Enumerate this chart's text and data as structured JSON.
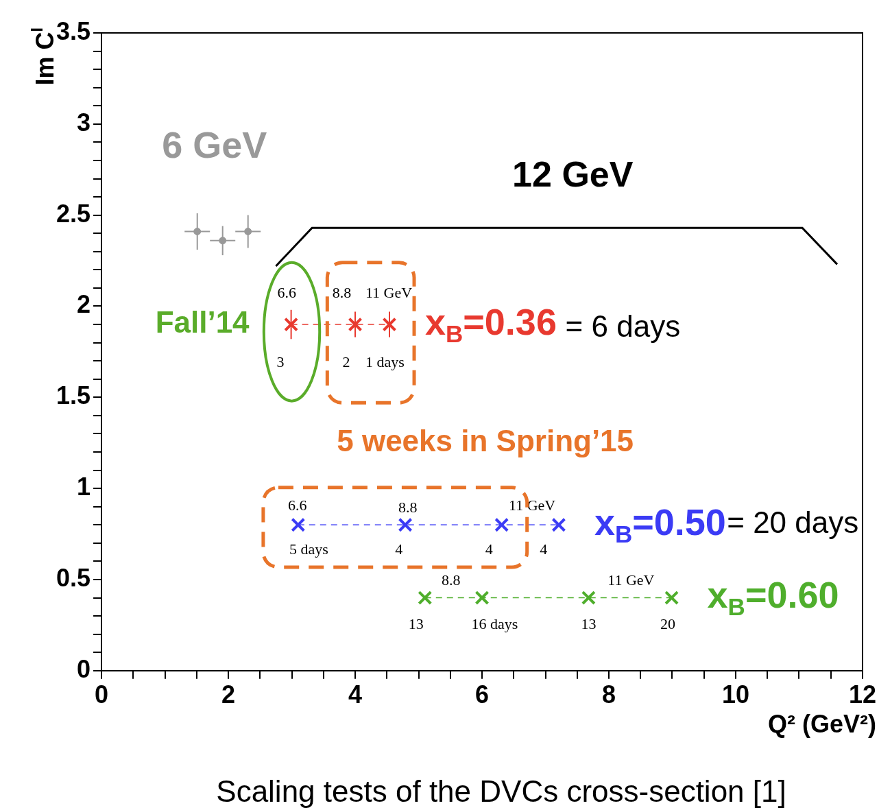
{
  "chart_data": {
    "type": "scatter",
    "xlabel": "Q² (GeV²)",
    "ylabel": "Im C$^{I}$",
    "xlim": [
      0,
      12
    ],
    "ylim": [
      0,
      3.5
    ],
    "xticks": [
      0,
      {
        "value": 0.5,
        "label": null
      },
      {
        "value": 1,
        "label": null
      },
      {
        "value": 1.5,
        "label": null
      },
      2,
      {
        "value": 2.5,
        "label": null
      },
      {
        "value": 3,
        "label": null
      },
      {
        "value": 3.5,
        "label": null
      },
      4,
      {
        "value": 4.5,
        "label": null
      },
      {
        "value": 5,
        "label": null
      },
      {
        "value": 5.5,
        "label": null
      },
      6,
      {
        "value": 6.5,
        "label": null
      },
      {
        "value": 7,
        "label": null
      },
      {
        "value": 7.5,
        "label": null
      },
      8,
      {
        "value": 8.5,
        "label": null
      },
      {
        "value": 9,
        "label": null
      },
      {
        "value": 9.5,
        "label": null
      },
      10,
      {
        "value": 10.5,
        "label": null
      },
      {
        "value": 11,
        "label": null
      },
      {
        "value": 11.5,
        "label": null
      },
      12
    ],
    "yticks": [
      0,
      {
        "value": 0.1,
        "label": null
      },
      {
        "value": 0.2,
        "label": null
      },
      {
        "value": 0.3,
        "label": null
      },
      {
        "value": 0.4,
        "label": null
      },
      0.5,
      {
        "value": 0.6,
        "label": null
      },
      {
        "value": 0.7,
        "label": null
      },
      {
        "value": 0.8,
        "label": null
      },
      {
        "value": 0.9,
        "label": null
      },
      1,
      {
        "value": 1.1,
        "label": null
      },
      {
        "value": 1.2,
        "label": null
      },
      {
        "value": 1.3,
        "label": null
      },
      {
        "value": 1.4,
        "label": null
      },
      1.5,
      {
        "value": 1.6,
        "label": null
      },
      {
        "value": 1.7,
        "label": null
      },
      {
        "value": 1.8,
        "label": null
      },
      {
        "value": 1.9,
        "label": null
      },
      2,
      {
        "value": 2.1,
        "label": null
      },
      {
        "value": 2.2,
        "label": null
      },
      {
        "value": 2.3,
        "label": null
      },
      {
        "value": 2.4,
        "label": null
      },
      2.5,
      {
        "value": 2.6,
        "label": null
      },
      {
        "value": 2.7,
        "label": null
      },
      {
        "value": 2.8,
        "label": null
      },
      {
        "value": 2.9,
        "label": null
      },
      3,
      {
        "value": 3.1,
        "label": null
      },
      {
        "value": 3.2,
        "label": null
      },
      {
        "value": 3.3,
        "label": null
      },
      {
        "value": 3.4,
        "label": null
      },
      3.5
    ],
    "grid": false,
    "legend": false,
    "series": [
      {
        "marker": "circle",
        "color": "#999999",
        "x": [
          1.51,
          1.91,
          2.31
        ],
        "values": [
          2.41,
          2.36,
          2.41
        ],
        "errors": [
          0.1,
          0.08,
          0.09
        ],
        "xerrors": [
          0.2,
          0.2,
          0.2
        ]
      },
      {
        "name": "x$_{B}$=0.36",
        "type": "line",
        "line_style": "dashed",
        "marker": "cross",
        "color": "#e8392f",
        "x": [
          2.99,
          4.0,
          4.54
        ],
        "values": [
          1.9,
          1.9,
          1.9
        ],
        "errors": [
          0.08,
          0.07,
          0.07
        ]
      },
      {
        "name": "x$_{B}$=0.50",
        "type": "line",
        "line_style": "dashed",
        "marker": "cross",
        "color": "#3b3bf5",
        "x": [
          3.1,
          4.79,
          6.31,
          7.21
        ],
        "values": [
          0.8,
          0.8,
          0.8,
          0.8
        ]
      },
      {
        "name": "x$_{B}$=0.60",
        "type": "line",
        "line_style": "dashed",
        "marker": "cross",
        "color": "#4fae2c",
        "x": [
          5.1,
          6.0,
          7.68,
          8.99
        ],
        "values": [
          0.4,
          0.4,
          0.4,
          0.4
        ]
      }
    ],
    "annotations": [
      "6 GeV",
      "12 GeV",
      "Fall’14",
      "5 weeks in Spring’15",
      "= 6 days",
      "= 20 days",
      "6.6",
      "8.8",
      "11 GeV",
      "3",
      "2",
      "1 days",
      "6.6",
      "8.8",
      "11 GeV",
      "5 days",
      "4",
      "4",
      "4",
      "8.8",
      "11 GeV",
      "13",
      "16 days",
      "13",
      "20",
      "Scaling tests of the DVCs cross-section [1]"
    ]
  }
}
